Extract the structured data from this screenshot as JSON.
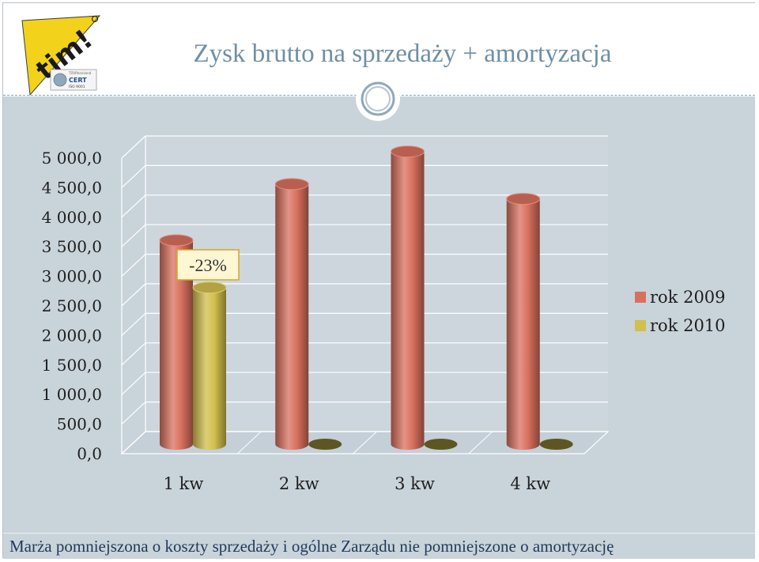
{
  "header": {
    "title": "Zysk brutto na sprzedaży + amortyzacja",
    "logo_text": "tim!",
    "cert_small": "TÜVRheinland",
    "cert_label": "CERT",
    "cert_iso": "ISO 9001"
  },
  "footer": {
    "note": "Marża pomniejszona o koszty sprzedaży i ogólne Zarządu nie pomniejszone o amortyzację"
  },
  "colors": {
    "series_2009": "#d9705e",
    "series_2010": "#d2bf4c",
    "background": "#c9d3da",
    "title": "#6e8fa6"
  },
  "chart_data": {
    "type": "bar",
    "style": "3d-cylinder",
    "categories": [
      "1 kw",
      "2 kw",
      "3 kw",
      "4 kw"
    ],
    "series": [
      {
        "name": "rok 2009",
        "color": "#d9705e",
        "values": [
          3450,
          4400,
          4950,
          4150
        ]
      },
      {
        "name": "rok 2010",
        "color": "#d2bf4c",
        "values": [
          2650,
          0,
          0,
          0
        ]
      }
    ],
    "y_ticks": [
      "0,0",
      "500,0",
      "1 000,0",
      "1 500,0",
      "2 000,0",
      "2 500,0",
      "3 000,0",
      "3 500,0",
      "4 000,0",
      "4 500,0",
      "5 000,0"
    ],
    "ylim": [
      0,
      5000
    ],
    "grid": true,
    "legend_position": "right",
    "annotations": [
      {
        "text": "-23%",
        "category": "1 kw"
      }
    ]
  }
}
